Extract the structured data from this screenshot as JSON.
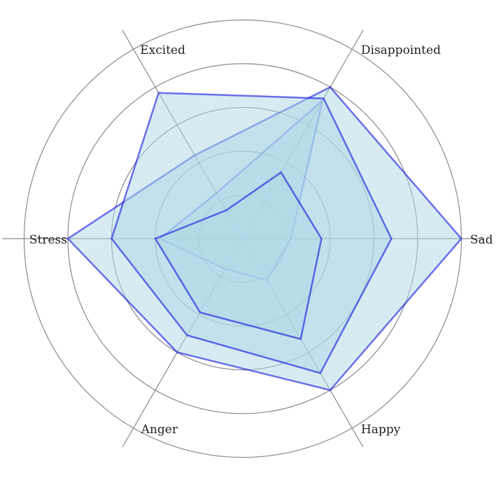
{
  "colors": {
    "background": "#ffffff",
    "grid": "#8a8a8a",
    "area_fill": "#add8e6",
    "series_stroke": "#0000e0"
  },
  "chart_data": {
    "type": "radar",
    "title": "",
    "axes": [
      "Sad",
      "Disappointed",
      "Excited",
      "Stress",
      "Anger",
      "Happy"
    ],
    "r_range": [
      0,
      5
    ],
    "ring_values": [
      1,
      2,
      3,
      4,
      5
    ],
    "grid": true,
    "legend": "none",
    "series": [
      {
        "values": [
          1.1,
          3.65,
          1.2,
          1.9,
          0.8,
          1.1
        ]
      },
      {
        "values": [
          5.0,
          4.0,
          2.2,
          4.0,
          3.0,
          4.0
        ]
      },
      {
        "values": [
          3.4,
          3.7,
          3.85,
          3.0,
          2.55,
          3.55
        ]
      },
      {
        "values": [
          1.8,
          1.75,
          0.75,
          2.0,
          1.95,
          2.65
        ]
      }
    ]
  }
}
